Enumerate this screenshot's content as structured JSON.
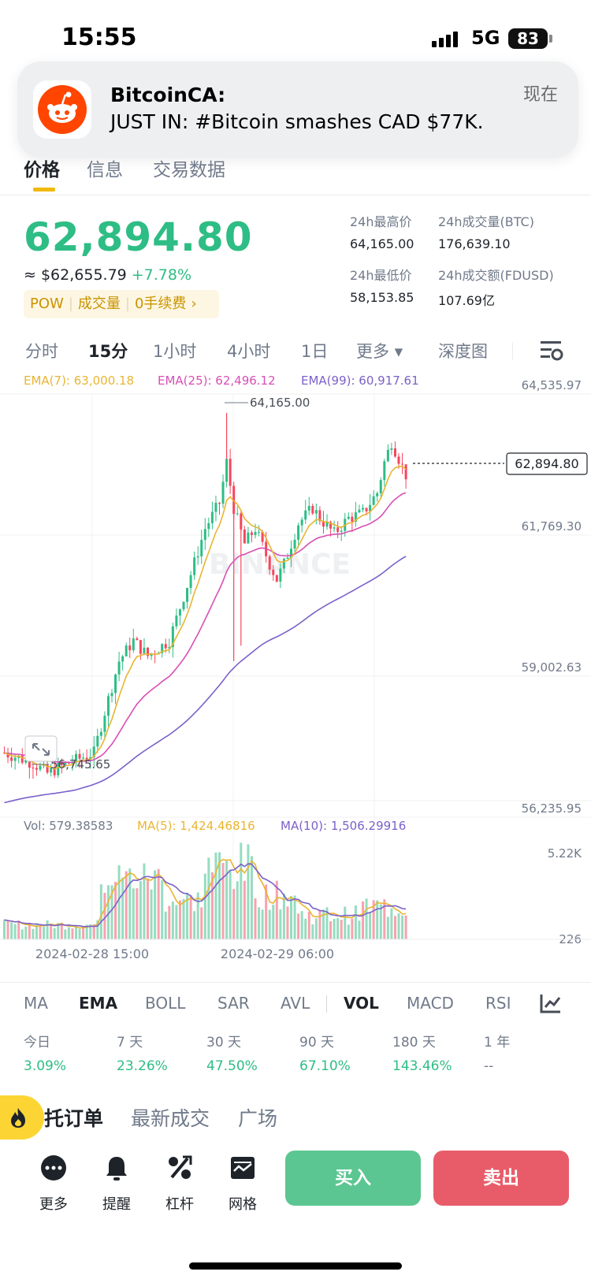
{
  "status": {
    "time": "15:55",
    "network": "5G",
    "battery": "83"
  },
  "notification": {
    "app_name": "BitcoinCA:",
    "message": "JUST IN: #Bitcoin smashes CAD $77K.",
    "time": "现在"
  },
  "tabs": [
    "价格",
    "信息",
    "交易数据"
  ],
  "price": {
    "last": "62,894.80",
    "usd_approx": "≈ $62,655.79",
    "change": "+7.78%",
    "tags": [
      "POW",
      "成交量",
      "0手续费",
      "›"
    ]
  },
  "stats": {
    "high_label": "24h最高价",
    "high_value": "64,165.00",
    "low_label": "24h最低价",
    "low_value": "58,153.85",
    "vol_btc_label": "24h成交量(BTC)",
    "vol_btc_value": "176,639.10",
    "vol_quote_label": "24h成交额(FDUSD)",
    "vol_quote_value": "107.69亿"
  },
  "intervals": {
    "items": [
      "分时",
      "15分",
      "1小时",
      "4小时",
      "1日",
      "更多 ▾",
      "深度图"
    ],
    "active": "15分"
  },
  "chart_data": {
    "type": "candlestick",
    "ema_legend": [
      {
        "label": "EMA(7): 63,000.18",
        "color": "#e9b531"
      },
      {
        "label": "EMA(25): 62,496.12",
        "color": "#d84fb5"
      },
      {
        "label": "EMA(99): 60,917.61",
        "color": "#7b61c9"
      }
    ],
    "y_ticks": [
      "64,535.97",
      "61,769.30",
      "59,002.63",
      "56,235.95"
    ],
    "ylim": [
      56235.95,
      64535.97
    ],
    "current_price": "62,894.80",
    "high_marker": "64,165.00",
    "low_marker": "56,745.65",
    "x_ticks": [
      "2024-02-28 15:00",
      "2024-02-29 06:00"
    ],
    "volume": {
      "legend": [
        {
          "label": "Vol: 579.38583",
          "color": "#707a8a"
        },
        {
          "label": "MA(5): 1,424.46816",
          "color": "#e9b531"
        },
        {
          "label": "MA(10): 1,506.29916",
          "color": "#7b61c9"
        }
      ],
      "y_ticks": [
        "5.22K",
        "226"
      ]
    },
    "watermark": "BINANCE"
  },
  "indicators": {
    "items": [
      "MA",
      "EMA",
      "BOLL",
      "SAR",
      "AVL",
      "VOL",
      "MACD",
      "RSI"
    ],
    "active": [
      "EMA",
      "VOL"
    ]
  },
  "performance": [
    {
      "label": "今日",
      "value": "3.09%"
    },
    {
      "label": "7 天",
      "value": "23.26%"
    },
    {
      "label": "30 天",
      "value": "47.50%"
    },
    {
      "label": "90 天",
      "value": "67.10%"
    },
    {
      "label": "180 天",
      "value": "143.46%"
    },
    {
      "label": "1 年",
      "value": "--"
    }
  ],
  "bottom_tabs": [
    "托订单",
    "最新成交",
    "广场"
  ],
  "actions": {
    "more": "更多",
    "alert": "提醒",
    "leverage": "杠杆",
    "grid": "网格",
    "buy": "买入",
    "sell": "卖出"
  },
  "colors": {
    "up": "#2ebd85",
    "down": "#f6465d",
    "accent": "#f0b90b"
  },
  "icons": [
    "reddit-icon",
    "settings-icon",
    "expand-icon",
    "chart-icon",
    "fire-icon",
    "more-icon",
    "bell-icon",
    "percent-icon",
    "grid-icon"
  ]
}
